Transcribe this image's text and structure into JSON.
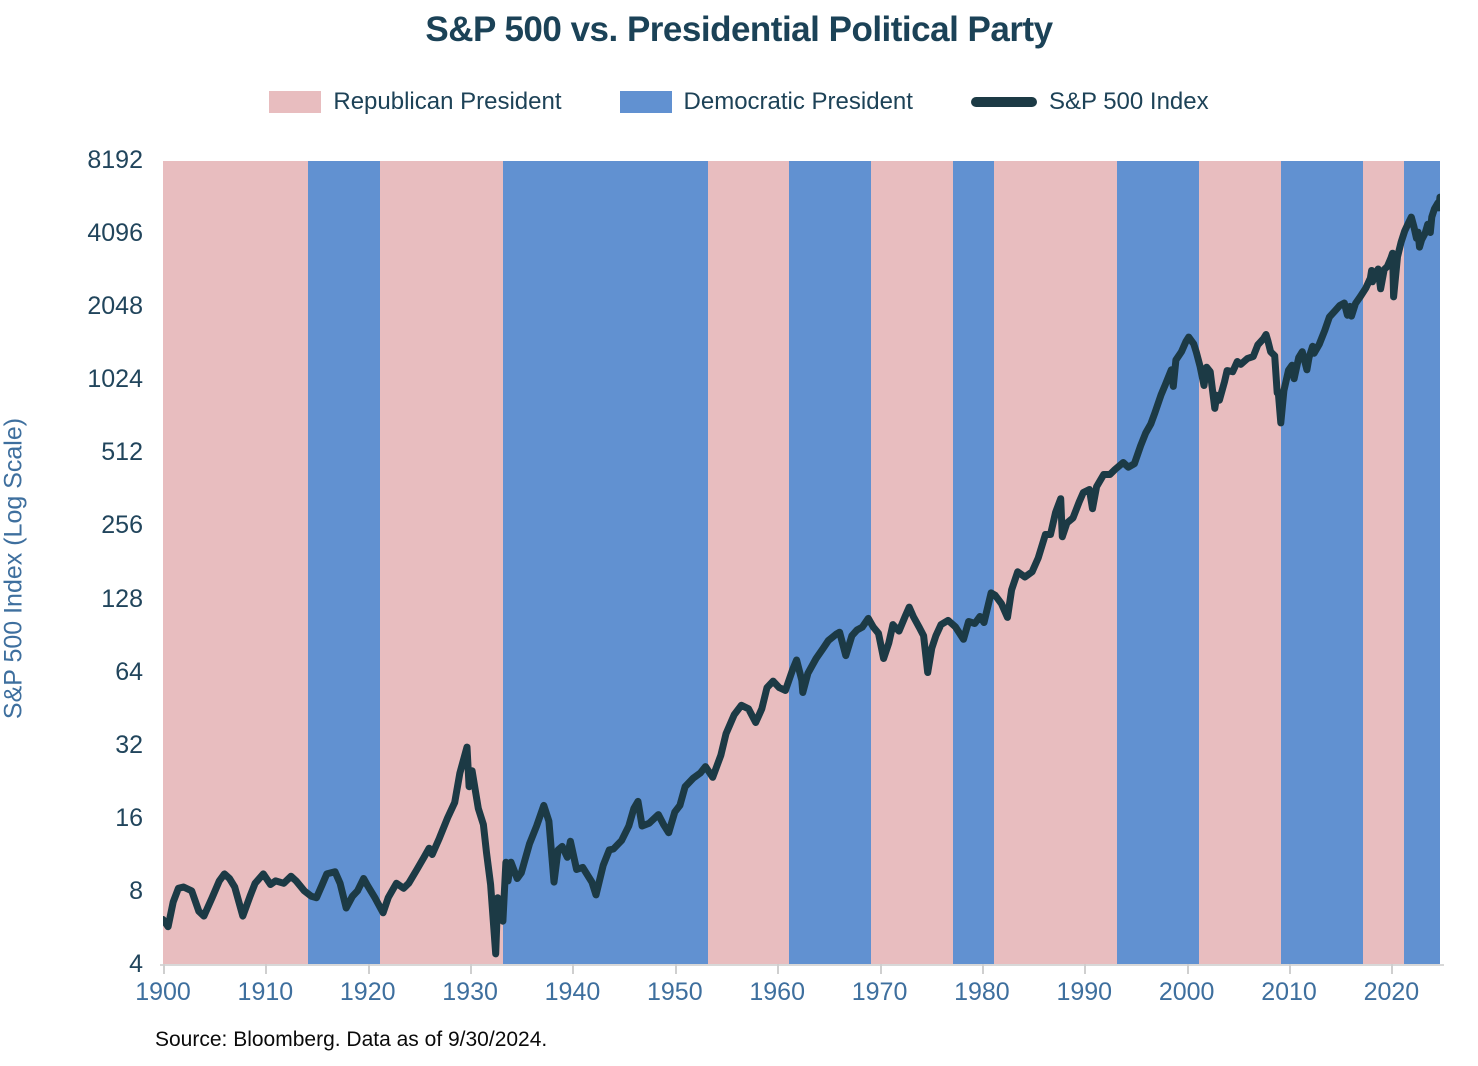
{
  "title": "S&P 500 vs. Presidential Political Party",
  "source": "Source: Bloomberg. Data as of 9/30/2024.",
  "legend": {
    "items": [
      {
        "label": "Republican President",
        "color": "#e8bdbf",
        "type": "swatch"
      },
      {
        "label": "Democratic President",
        "color": "#6191d1",
        "type": "swatch"
      },
      {
        "label": "S&P 500 Index",
        "color": "#1c3a45",
        "type": "line"
      }
    ]
  },
  "colors": {
    "title": "#1b4257",
    "y_tick_labels": "#21455c",
    "x_tick_labels": "#3e6f9e",
    "axis_line": "#d8d8d8",
    "republican_band": "#e8bdbf",
    "democratic_band": "#6191d1",
    "sp500_line": "#1c3a45",
    "background": "#ffffff"
  },
  "chart_data": {
    "type": "line",
    "title": "S&P 500 vs. Presidential Political Party",
    "xlabel": "",
    "ylabel": "S&P 500 Index (Log Scale)",
    "y_scale": "log2",
    "grid": false,
    "legend_position": "top",
    "x_range": [
      1900,
      2024.75
    ],
    "y_range": [
      4,
      8192
    ],
    "y_ticks": [
      8192,
      4096,
      2048,
      1024,
      512,
      256,
      128,
      64,
      32,
      16,
      8,
      4
    ],
    "x_ticks": [
      1900,
      1910,
      1920,
      1930,
      1940,
      1950,
      1960,
      1970,
      1980,
      1990,
      2000,
      2010,
      2020
    ],
    "band_colors": {
      "R": "#e8bdbf",
      "D": "#6191d1"
    },
    "party_bands": [
      {
        "party": "R",
        "label": "Republican President",
        "start": 1900.0,
        "end": 1914.2
      },
      {
        "party": "D",
        "label": "Democratic President",
        "start": 1914.2,
        "end": 1921.2
      },
      {
        "party": "R",
        "label": "Republican President",
        "start": 1921.2,
        "end": 1933.2
      },
      {
        "party": "D",
        "label": "Democratic President",
        "start": 1933.2,
        "end": 1953.2
      },
      {
        "party": "R",
        "label": "Republican President",
        "start": 1953.2,
        "end": 1961.2
      },
      {
        "party": "D",
        "label": "Democratic President",
        "start": 1961.2,
        "end": 1969.2
      },
      {
        "party": "R",
        "label": "Republican President",
        "start": 1969.2,
        "end": 1977.2
      },
      {
        "party": "D",
        "label": "Democratic President",
        "start": 1977.2,
        "end": 1981.2
      },
      {
        "party": "R",
        "label": "Republican President",
        "start": 1981.2,
        "end": 1993.2
      },
      {
        "party": "D",
        "label": "Democratic President",
        "start": 1993.2,
        "end": 2001.2
      },
      {
        "party": "R",
        "label": "Republican President",
        "start": 2001.2,
        "end": 2009.2
      },
      {
        "party": "D",
        "label": "Democratic President",
        "start": 2009.2,
        "end": 2017.2
      },
      {
        "party": "R",
        "label": "Republican President",
        "start": 2017.2,
        "end": 2021.2
      },
      {
        "party": "D",
        "label": "Democratic President",
        "start": 2021.2,
        "end": 2024.75
      }
    ],
    "series": [
      {
        "name": "S&P 500 Index",
        "color": "#1c3a45",
        "points": [
          [
            1900.0,
            6.1
          ],
          [
            1900.5,
            5.7
          ],
          [
            1901.0,
            7.2
          ],
          [
            1901.5,
            8.2
          ],
          [
            1902.0,
            8.3
          ],
          [
            1902.8,
            8.0
          ],
          [
            1903.5,
            6.6
          ],
          [
            1904.0,
            6.3
          ],
          [
            1904.8,
            7.5
          ],
          [
            1905.5,
            8.8
          ],
          [
            1906.0,
            9.4
          ],
          [
            1906.5,
            9.0
          ],
          [
            1907.0,
            8.3
          ],
          [
            1907.8,
            6.3
          ],
          [
            1908.5,
            7.6
          ],
          [
            1909.0,
            8.6
          ],
          [
            1909.8,
            9.4
          ],
          [
            1910.5,
            8.5
          ],
          [
            1911.0,
            8.8
          ],
          [
            1911.8,
            8.6
          ],
          [
            1912.5,
            9.2
          ],
          [
            1913.0,
            8.8
          ],
          [
            1913.8,
            8.0
          ],
          [
            1914.5,
            7.6
          ],
          [
            1915.0,
            7.5
          ],
          [
            1915.5,
            8.4
          ],
          [
            1916.0,
            9.4
          ],
          [
            1916.8,
            9.6
          ],
          [
            1917.3,
            8.6
          ],
          [
            1917.9,
            6.8
          ],
          [
            1918.5,
            7.6
          ],
          [
            1919.0,
            8.0
          ],
          [
            1919.6,
            9.0
          ],
          [
            1920.0,
            8.4
          ],
          [
            1920.7,
            7.5
          ],
          [
            1921.5,
            6.5
          ],
          [
            1922.0,
            7.5
          ],
          [
            1922.8,
            8.6
          ],
          [
            1923.5,
            8.2
          ],
          [
            1924.0,
            8.6
          ],
          [
            1924.8,
            9.8
          ],
          [
            1925.5,
            11.0
          ],
          [
            1926.0,
            12.0
          ],
          [
            1926.3,
            11.3
          ],
          [
            1927.0,
            13.2
          ],
          [
            1927.8,
            16.0
          ],
          [
            1928.5,
            18.5
          ],
          [
            1929.0,
            24.5
          ],
          [
            1929.7,
            31.3
          ],
          [
            1929.9,
            21.5
          ],
          [
            1930.2,
            25.0
          ],
          [
            1930.8,
            17.5
          ],
          [
            1931.3,
            15.0
          ],
          [
            1931.6,
            11.5
          ],
          [
            1932.0,
            8.5
          ],
          [
            1932.5,
            4.4
          ],
          [
            1932.7,
            7.5
          ],
          [
            1932.9,
            6.2
          ],
          [
            1933.2,
            6.0
          ],
          [
            1933.5,
            10.5
          ],
          [
            1933.7,
            8.8
          ],
          [
            1934.0,
            10.5
          ],
          [
            1934.6,
            9.0
          ],
          [
            1935.0,
            9.5
          ],
          [
            1935.8,
            12.5
          ],
          [
            1936.5,
            14.8
          ],
          [
            1937.2,
            18.0
          ],
          [
            1937.7,
            15.5
          ],
          [
            1938.2,
            8.7
          ],
          [
            1938.6,
            11.8
          ],
          [
            1939.0,
            12.2
          ],
          [
            1939.5,
            11.0
          ],
          [
            1939.8,
            12.8
          ],
          [
            1940.4,
            9.8
          ],
          [
            1941.0,
            10.0
          ],
          [
            1941.9,
            8.7
          ],
          [
            1942.3,
            7.7
          ],
          [
            1943.0,
            10.2
          ],
          [
            1943.6,
            11.8
          ],
          [
            1944.0,
            11.9
          ],
          [
            1944.8,
            12.9
          ],
          [
            1945.5,
            14.8
          ],
          [
            1946.0,
            17.5
          ],
          [
            1946.4,
            18.7
          ],
          [
            1946.8,
            14.8
          ],
          [
            1947.5,
            15.2
          ],
          [
            1948.4,
            16.5
          ],
          [
            1948.9,
            15.0
          ],
          [
            1949.4,
            13.9
          ],
          [
            1950.0,
            16.9
          ],
          [
            1950.5,
            18.0
          ],
          [
            1951.0,
            21.5
          ],
          [
            1951.8,
            23.3
          ],
          [
            1952.5,
            24.5
          ],
          [
            1953.0,
            26.0
          ],
          [
            1953.7,
            23.5
          ],
          [
            1954.5,
            29.0
          ],
          [
            1955.0,
            35.5
          ],
          [
            1955.8,
            42.5
          ],
          [
            1956.5,
            46.5
          ],
          [
            1957.2,
            45.0
          ],
          [
            1957.9,
            39.5
          ],
          [
            1958.5,
            45.0
          ],
          [
            1959.0,
            55.0
          ],
          [
            1959.6,
            58.5
          ],
          [
            1960.2,
            55.0
          ],
          [
            1960.8,
            53.5
          ],
          [
            1961.5,
            65.0
          ],
          [
            1961.9,
            71.5
          ],
          [
            1962.4,
            59.0
          ],
          [
            1962.5,
            52.5
          ],
          [
            1963.0,
            63.0
          ],
          [
            1963.8,
            72.5
          ],
          [
            1964.5,
            80.0
          ],
          [
            1965.0,
            86.0
          ],
          [
            1965.8,
            91.5
          ],
          [
            1966.1,
            93.0
          ],
          [
            1966.7,
            74.5
          ],
          [
            1967.3,
            90.0
          ],
          [
            1967.8,
            95.0
          ],
          [
            1968.3,
            97.5
          ],
          [
            1968.9,
            106.0
          ],
          [
            1969.4,
            97.5
          ],
          [
            1969.9,
            92.0
          ],
          [
            1970.4,
            72.5
          ],
          [
            1970.9,
            84.0
          ],
          [
            1971.3,
            100.0
          ],
          [
            1971.9,
            94.0
          ],
          [
            1972.5,
            108.0
          ],
          [
            1972.9,
            118.0
          ],
          [
            1973.3,
            108.0
          ],
          [
            1973.9,
            97.0
          ],
          [
            1974.3,
            90.0
          ],
          [
            1974.7,
            63.5
          ],
          [
            1975.1,
            80.0
          ],
          [
            1975.5,
            90.0
          ],
          [
            1976.0,
            100.0
          ],
          [
            1976.7,
            104.0
          ],
          [
            1977.4,
            98.0
          ],
          [
            1978.2,
            87.0
          ],
          [
            1978.7,
            103.0
          ],
          [
            1979.3,
            101.0
          ],
          [
            1979.8,
            108.0
          ],
          [
            1980.2,
            102.0
          ],
          [
            1980.9,
            135.0
          ],
          [
            1981.3,
            132.0
          ],
          [
            1981.9,
            122.0
          ],
          [
            1982.5,
            107.0
          ],
          [
            1982.9,
            139.0
          ],
          [
            1983.5,
            165.0
          ],
          [
            1984.2,
            157.0
          ],
          [
            1984.9,
            165.0
          ],
          [
            1985.5,
            188.0
          ],
          [
            1986.2,
            235.0
          ],
          [
            1986.7,
            235.0
          ],
          [
            1987.2,
            290.0
          ],
          [
            1987.7,
            330.0
          ],
          [
            1987.85,
            230.0
          ],
          [
            1988.3,
            262.0
          ],
          [
            1988.9,
            275.0
          ],
          [
            1989.5,
            320.0
          ],
          [
            1989.9,
            350.0
          ],
          [
            1990.5,
            360.0
          ],
          [
            1990.8,
            300.0
          ],
          [
            1991.2,
            370.0
          ],
          [
            1991.9,
            415.0
          ],
          [
            1992.5,
            415.0
          ],
          [
            1993.0,
            435.0
          ],
          [
            1993.8,
            465.0
          ],
          [
            1994.3,
            445.0
          ],
          [
            1994.9,
            460.0
          ],
          [
            1995.5,
            545.0
          ],
          [
            1996.0,
            615.0
          ],
          [
            1996.5,
            670.0
          ],
          [
            1996.9,
            745.0
          ],
          [
            1997.5,
            885.0
          ],
          [
            1997.9,
            970.0
          ],
          [
            1998.5,
            1120.0
          ],
          [
            1998.7,
            957.0
          ],
          [
            1998.95,
            1229.0
          ],
          [
            1999.5,
            1330.0
          ],
          [
            1999.95,
            1469.0
          ],
          [
            2000.2,
            1527.0
          ],
          [
            2000.7,
            1430.0
          ],
          [
            2000.95,
            1320.0
          ],
          [
            2001.3,
            1160.0
          ],
          [
            2001.7,
            965.0
          ],
          [
            2001.95,
            1148.0
          ],
          [
            2002.3,
            1100.0
          ],
          [
            2002.75,
            777.0
          ],
          [
            2002.95,
            880.0
          ],
          [
            2003.2,
            840.0
          ],
          [
            2003.7,
            1000.0
          ],
          [
            2003.95,
            1112.0
          ],
          [
            2004.5,
            1100.0
          ],
          [
            2004.95,
            1212.0
          ],
          [
            2005.3,
            1180.0
          ],
          [
            2005.95,
            1248.0
          ],
          [
            2006.5,
            1270.0
          ],
          [
            2006.95,
            1418.0
          ],
          [
            2007.5,
            1503.0
          ],
          [
            2007.75,
            1565.0
          ],
          [
            2007.95,
            1468.0
          ],
          [
            2008.2,
            1330.0
          ],
          [
            2008.6,
            1280.0
          ],
          [
            2008.85,
            900.0
          ],
          [
            2008.95,
            903.0
          ],
          [
            2009.2,
            677.0
          ],
          [
            2009.5,
            920.0
          ],
          [
            2009.95,
            1115.0
          ],
          [
            2010.3,
            1170.0
          ],
          [
            2010.5,
            1030.0
          ],
          [
            2010.95,
            1258.0
          ],
          [
            2011.3,
            1330.0
          ],
          [
            2011.75,
            1120.0
          ],
          [
            2011.95,
            1258.0
          ],
          [
            2012.3,
            1400.0
          ],
          [
            2012.45,
            1310.0
          ],
          [
            2012.95,
            1426.0
          ],
          [
            2013.5,
            1630.0
          ],
          [
            2013.95,
            1848.0
          ],
          [
            2014.5,
            1960.0
          ],
          [
            2014.95,
            2059.0
          ],
          [
            2015.4,
            2110.0
          ],
          [
            2015.7,
            1880.0
          ],
          [
            2015.95,
            2044.0
          ],
          [
            2016.1,
            1865.0
          ],
          [
            2016.5,
            2100.0
          ],
          [
            2016.95,
            2239.0
          ],
          [
            2017.5,
            2430.0
          ],
          [
            2017.95,
            2674.0
          ],
          [
            2018.07,
            2872.0
          ],
          [
            2018.15,
            2581.0
          ],
          [
            2018.7,
            2914.0
          ],
          [
            2018.95,
            2416.0
          ],
          [
            2019.3,
            2900.0
          ],
          [
            2019.6,
            2980.0
          ],
          [
            2019.95,
            3231.0
          ],
          [
            2020.12,
            3386.0
          ],
          [
            2020.22,
            2237.0
          ],
          [
            2020.6,
            3271.0
          ],
          [
            2020.95,
            3756.0
          ],
          [
            2021.3,
            4180.0
          ],
          [
            2021.7,
            4537.0
          ],
          [
            2021.95,
            4766.0
          ],
          [
            2022.2,
            4350.0
          ],
          [
            2022.45,
            3900.0
          ],
          [
            2022.6,
            4130.0
          ],
          [
            2022.75,
            3585.0
          ],
          [
            2022.95,
            3840.0
          ],
          [
            2023.3,
            4100.0
          ],
          [
            2023.55,
            4450.0
          ],
          [
            2023.8,
            4120.0
          ],
          [
            2023.95,
            4770.0
          ],
          [
            2024.2,
            5150.0
          ],
          [
            2024.55,
            5460.0
          ],
          [
            2024.62,
            5200.0
          ],
          [
            2024.75,
            5762.0
          ]
        ]
      }
    ]
  }
}
